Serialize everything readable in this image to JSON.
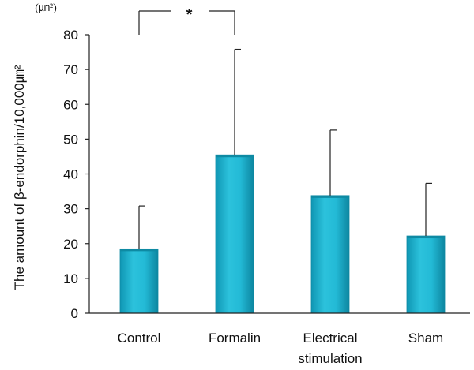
{
  "chart_data": {
    "type": "bar",
    "categories": [
      "Control",
      "Formalin",
      "Electrical stimulation",
      "Sham"
    ],
    "category_lines": [
      [
        "Control"
      ],
      [
        "Formalin"
      ],
      [
        "Electrical",
        "stimulation"
      ],
      [
        "Sham"
      ]
    ],
    "values": [
      18.5,
      45.5,
      33.8,
      22.2
    ],
    "error_upper": [
      30.8,
      75.8,
      52.6,
      37.3
    ],
    "ylim": [
      0,
      80
    ],
    "yticks": [
      0,
      10,
      20,
      30,
      40,
      50,
      60,
      70,
      80
    ],
    "ylabel": "The amount of β-endorphin/10,000㎛²",
    "yunit": "(㎛²)",
    "title": "",
    "xlabel": "",
    "grid": false,
    "bar_color": "#1ab3cf",
    "bar_color_dark": "#0e8aa3",
    "significance": {
      "from": 0,
      "to": 1,
      "label": "*"
    }
  }
}
